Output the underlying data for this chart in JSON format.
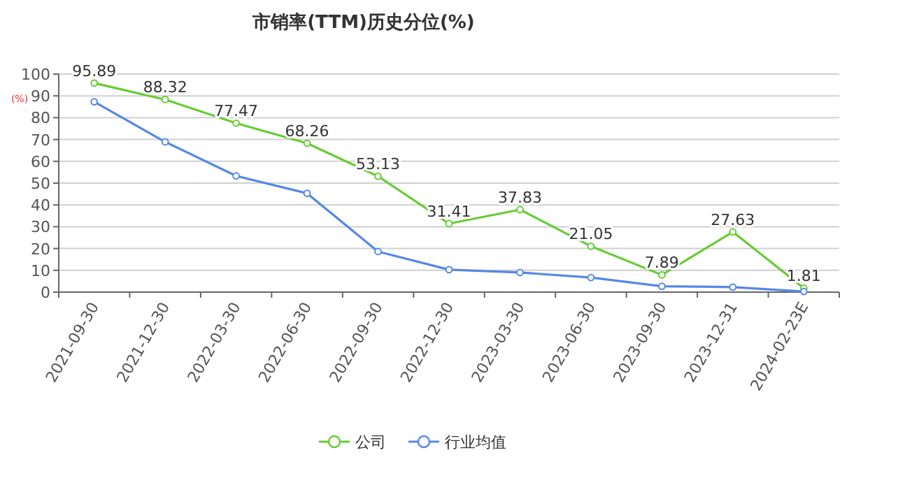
{
  "chart_data": {
    "type": "line",
    "title": "市销率(TTM)历史分位(%)",
    "ylabel": "(%)",
    "categories": [
      "2021-09-30",
      "2021-12-30",
      "2022-03-30",
      "2022-06-30",
      "2022-09-30",
      "2022-12-30",
      "2023-03-30",
      "2023-06-30",
      "2023-09-30",
      "2023-12-31",
      "2024-02-23E"
    ],
    "series": [
      {
        "name": "公司",
        "color": "#66cc33",
        "values": [
          95.89,
          88.32,
          77.47,
          68.26,
          53.13,
          31.41,
          37.83,
          21.05,
          7.89,
          27.63,
          1.81
        ],
        "value_labels": [
          "95.89",
          "88.32",
          "77.47",
          "68.26",
          "53.13",
          "31.41",
          "37.83",
          "21.05",
          "7.89",
          "27.63",
          "1.81"
        ]
      },
      {
        "name": "行业均值",
        "color": "#5588e6",
        "values": [
          87.3,
          68.9,
          53.3,
          45.3,
          18.6,
          10.3,
          9.0,
          6.7,
          2.7,
          2.3,
          0.3
        ]
      }
    ],
    "ylim": [
      0,
      100
    ],
    "yticks": [
      0,
      10,
      20,
      30,
      40,
      50,
      60,
      70,
      80,
      90,
      100
    ],
    "grid": "y",
    "legend": "bottom",
    "marker": "circle",
    "line_style": "solid"
  }
}
